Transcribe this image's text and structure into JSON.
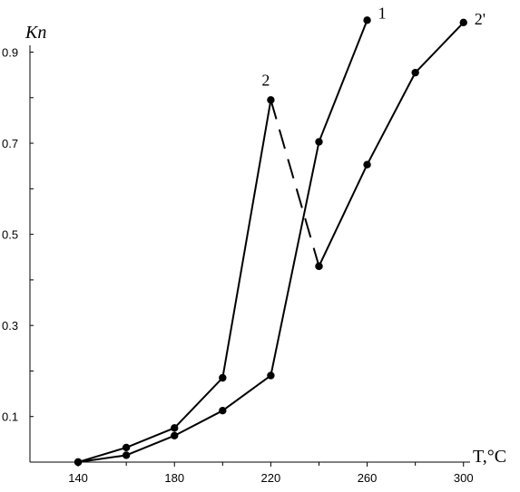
{
  "chart_data": {
    "type": "line",
    "xlabel": "T,°C",
    "ylabel": "Kп",
    "xlim": [
      120,
      305
    ],
    "ylim": [
      0.0,
      0.905
    ],
    "xticks": [
      140,
      180,
      220,
      260,
      300
    ],
    "xtick_labels": [
      "140",
      "180",
      "220",
      "260",
      "300"
    ],
    "xminor": [
      160,
      200,
      240,
      280
    ],
    "yticks": [
      0.1,
      0.3,
      0.5,
      0.7,
      0.9
    ],
    "ytick_labels": [
      "0.1",
      "0.3",
      "0.5",
      "0.7",
      "0.9"
    ],
    "yminor": [
      0.2,
      0.4,
      0.6,
      0.8
    ],
    "grid": false,
    "series": [
      {
        "name": "1",
        "x": [
          140,
          160,
          180,
          200,
          220,
          240,
          260
        ],
        "y": [
          0.0,
          0.015,
          0.058,
          0.113,
          0.19,
          0.703,
          0.97
        ],
        "dashed_segments": []
      },
      {
        "name": "2",
        "x": [
          140,
          160,
          180,
          200,
          220,
          240
        ],
        "y": [
          0.0,
          0.032,
          0.075,
          0.185,
          0.795,
          0.43
        ],
        "dashed_segments": [
          4
        ]
      },
      {
        "name": "2'",
        "x": [
          240,
          260,
          280,
          300
        ],
        "y": [
          0.43,
          0.653,
          0.855,
          0.965
        ],
        "dashed_segments": []
      }
    ]
  }
}
